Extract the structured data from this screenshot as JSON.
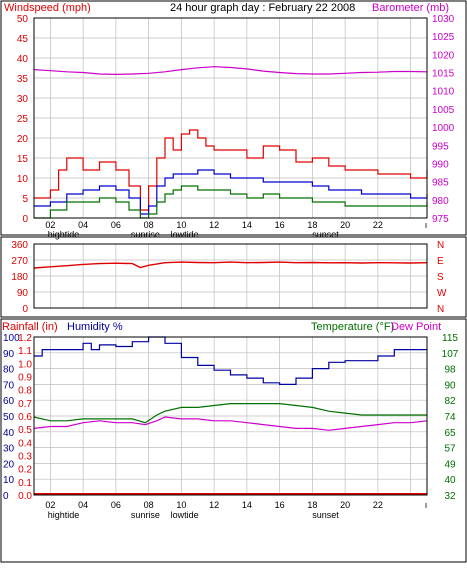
{
  "title": "24 hour graph day : February 22 2008",
  "colors": {
    "wind": "#e00000",
    "wind_avg": "#0000d0",
    "wind_low": "#007000",
    "baro": "#cc00cc",
    "dir": "#e00000",
    "rain": "#e00000",
    "humidity": "#0000a0",
    "temp": "#007000",
    "dew": "#cc00cc",
    "grid": "#bdbdbd",
    "frame": "#000000"
  },
  "time_axis": {
    "labels": [
      "02",
      "04",
      "06",
      "08",
      "10",
      "12",
      "14",
      "16",
      "18",
      "20",
      "22"
    ],
    "events_upper": [
      {
        "label": "hightide",
        "hour": 1.8
      },
      {
        "label": "sunrise",
        "hour": 6.8
      },
      {
        "label": "lowtide",
        "hour": 9.2
      },
      {
        "label": "sunset",
        "hour": 17.8
      }
    ],
    "events_lower": [
      {
        "label": "hightide",
        "hour": 1.8
      },
      {
        "label": "sunrise",
        "hour": 6.8
      },
      {
        "label": "lowtide",
        "hour": 9.2
      },
      {
        "label": "sunset",
        "hour": 17.8
      }
    ]
  },
  "chart_data": [
    {
      "type": "line",
      "name": "wind-barometer",
      "left_axis_label": "Windspeed (mph)",
      "right_axis_label": "Barometer (mb)",
      "x_range": [
        0,
        24
      ],
      "left_ylim": [
        0,
        50
      ],
      "left_ticks": [
        0,
        5,
        10,
        15,
        20,
        25,
        30,
        35,
        40,
        45,
        50
      ],
      "right_ylim": [
        975,
        1030
      ],
      "right_ticks": [
        975,
        980,
        985,
        990,
        995,
        1000,
        1005,
        1010,
        1015,
        1020,
        1025,
        1030
      ],
      "grid": true,
      "series": [
        {
          "key": "wind_gust",
          "axis": "left",
          "x": [
            0,
            1,
            1.5,
            2,
            3,
            4,
            5,
            5.8,
            6.5,
            7,
            7.5,
            8,
            8.5,
            9,
            9.5,
            10,
            10.5,
            11,
            12,
            13,
            14,
            15,
            16,
            17,
            18,
            19,
            20,
            21,
            22,
            23,
            24
          ],
          "values": [
            5,
            7,
            12,
            15,
            12,
            14,
            12,
            8,
            2,
            8,
            15,
            20,
            17,
            21,
            22,
            20,
            18,
            17,
            17,
            15,
            18,
            17,
            14,
            15,
            13,
            12,
            12,
            11,
            11,
            10,
            12
          ]
        },
        {
          "key": "wind_avg",
          "axis": "left",
          "x": [
            0,
            1,
            2,
            3,
            4,
            5,
            5.8,
            6.5,
            7,
            7.5,
            8,
            8.5,
            9,
            9.5,
            10,
            11,
            12,
            13,
            14,
            15,
            16,
            17,
            18,
            19,
            20,
            21,
            22,
            23,
            24
          ],
          "values": [
            3,
            4,
            6,
            7,
            8,
            7,
            5,
            1,
            3,
            8,
            10,
            11,
            11,
            11,
            12,
            11,
            10,
            10,
            9,
            9,
            9,
            8,
            7,
            7,
            6,
            6,
            6,
            5,
            6
          ]
        },
        {
          "key": "wind_low",
          "axis": "left",
          "x": [
            0,
            1,
            2,
            3,
            4,
            5,
            5.8,
            6.5,
            7,
            7.5,
            8,
            8.5,
            9,
            10,
            11,
            12,
            13,
            14,
            15,
            16,
            17,
            18,
            19,
            20,
            21,
            22,
            23,
            24
          ],
          "values": [
            0,
            2,
            4,
            4,
            5,
            4,
            2,
            0,
            1,
            4,
            6,
            7,
            8,
            7,
            7,
            6,
            5,
            6,
            5,
            5,
            4,
            4,
            3,
            3,
            3,
            3,
            3,
            4
          ]
        },
        {
          "key": "barometer",
          "axis": "right",
          "x": [
            0,
            1,
            2,
            3,
            4,
            5,
            6,
            7,
            8,
            9,
            10,
            11,
            12,
            13,
            14,
            15,
            16,
            17,
            18,
            19,
            20,
            21,
            22,
            23,
            24
          ],
          "values": [
            1015.8,
            1015.5,
            1015.2,
            1015.0,
            1014.6,
            1014.5,
            1014.6,
            1014.8,
            1015.2,
            1015.8,
            1016.3,
            1016.6,
            1016.4,
            1016.0,
            1015.4,
            1015.0,
            1014.7,
            1014.6,
            1014.6,
            1014.8,
            1015.0,
            1015.1,
            1015.3,
            1015.3,
            1015.2
          ]
        }
      ]
    },
    {
      "type": "line",
      "name": "wind-direction",
      "x_range": [
        0,
        24
      ],
      "ylim": [
        0,
        360
      ],
      "left_ticks": [
        0,
        90,
        180,
        270,
        360
      ],
      "right_ticks": [
        "N",
        "E",
        "S",
        "W",
        "N"
      ],
      "grid": true,
      "series": [
        {
          "key": "direction",
          "x": [
            0,
            1,
            2,
            3,
            4,
            5,
            6,
            6.5,
            7,
            8,
            9,
            10,
            11,
            12,
            13,
            14,
            15,
            16,
            17,
            18,
            19,
            20,
            21,
            22,
            23,
            24
          ],
          "values": [
            225,
            232,
            238,
            245,
            250,
            252,
            250,
            228,
            240,
            255,
            258,
            256,
            255,
            258,
            255,
            256,
            258,
            255,
            256,
            254,
            255,
            253,
            255,
            254,
            253,
            255
          ]
        }
      ]
    },
    {
      "type": "line",
      "name": "rain-humidity-temperature",
      "left_axis_label_rain": "Rainfall (in)",
      "left_axis_label_humidity": "Humidity %",
      "right_axis_label_temp": "Temperature (°F)",
      "right_axis_label_dew": "Dew Point",
      "x_range": [
        0,
        24
      ],
      "rain_ticks": [
        "0.0",
        "0.1",
        "0.2",
        "0.3",
        "0.4",
        "0.5",
        "0.6",
        "0.7",
        "0.8",
        "0.9",
        "1.0",
        "1.1",
        "1.2"
      ],
      "humidity_ticks": [
        0,
        10,
        20,
        30,
        40,
        50,
        60,
        70,
        80,
        90,
        100
      ],
      "temp_ticks": [
        32,
        40,
        49,
        57,
        65,
        74,
        82,
        90,
        98,
        107,
        115
      ],
      "temp_ylim": [
        32,
        115
      ],
      "humidity_ylim": [
        0,
        100
      ],
      "grid": true,
      "series": [
        {
          "key": "humidity",
          "axis": "humidity",
          "step": true,
          "x": [
            0,
            0.5,
            2,
            3,
            3.5,
            4,
            5,
            6,
            7,
            8,
            9,
            10,
            11,
            12,
            13,
            14,
            15,
            16,
            17,
            18,
            19,
            20,
            21,
            22,
            23,
            24
          ],
          "values": [
            88,
            92,
            92,
            96,
            92,
            95,
            94,
            97,
            100,
            96,
            87,
            82,
            79,
            76,
            74,
            71,
            70,
            74,
            80,
            84,
            85,
            85,
            88,
            92,
            92,
            92
          ]
        },
        {
          "key": "temperature",
          "axis": "temp",
          "x": [
            0,
            1,
            2,
            3,
            4,
            5,
            6,
            6.8,
            7.5,
            8,
            9,
            10,
            11,
            12,
            13,
            14,
            15,
            16,
            17,
            18,
            19,
            20,
            21,
            22,
            23,
            24
          ],
          "values": [
            73,
            71,
            71,
            72,
            72,
            72,
            72,
            70,
            74,
            76,
            78,
            78,
            79,
            80,
            80,
            80,
            80,
            79,
            78,
            76,
            75,
            74,
            74,
            74,
            74,
            74
          ]
        },
        {
          "key": "dew_point",
          "axis": "temp",
          "x": [
            0,
            1,
            2,
            3,
            4,
            5,
            6,
            6.8,
            7.5,
            8,
            9,
            10,
            11,
            12,
            13,
            14,
            15,
            16,
            17,
            18,
            19,
            20,
            21,
            22,
            23,
            24
          ],
          "values": [
            67,
            68,
            68,
            70,
            71,
            70,
            70,
            69,
            71,
            73,
            72,
            72,
            71,
            71,
            70,
            69,
            68,
            67,
            67,
            66,
            67,
            68,
            69,
            70,
            70,
            71
          ]
        },
        {
          "key": "rainfall",
          "axis": "rain",
          "x": [
            0,
            24
          ],
          "values": [
            0,
            0
          ]
        }
      ]
    }
  ]
}
